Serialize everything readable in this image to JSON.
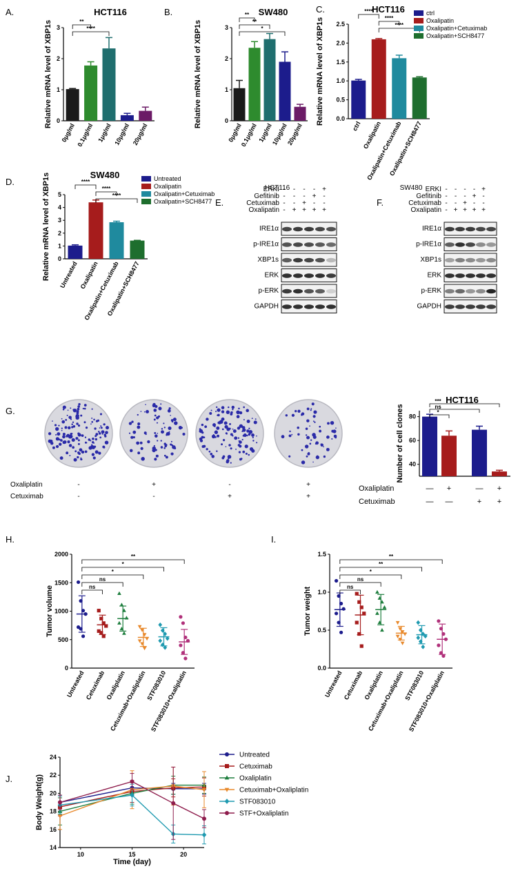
{
  "chart_data": [
    {
      "id": "A",
      "panel": "A.",
      "type": "bar",
      "title": "HCT116",
      "ylabel": "Relative mRNA level of XBP1s",
      "categories": [
        "0μg/ml",
        "0.1μg/ml",
        "1μg/ml",
        "10μg/ml",
        "20μg/ml"
      ],
      "values": [
        1.02,
        1.78,
        2.33,
        0.18,
        0.32
      ],
      "errors": [
        0.02,
        0.12,
        0.35,
        0.06,
        0.12
      ],
      "colors": [
        "#1a1a1a",
        "#2e8b2e",
        "#1f6e6e",
        "#1c1c8c",
        "#6b1a66"
      ],
      "ylim": [
        0,
        3
      ],
      "yticks": [
        "0",
        "1",
        "2",
        "3"
      ],
      "sig": [
        {
          "a": 0,
          "b": 1,
          "label": "**"
        },
        {
          "a": 0,
          "b": 2,
          "label": "****"
        }
      ]
    },
    {
      "id": "B",
      "panel": "B.",
      "type": "bar",
      "title": "SW480",
      "ylabel": "Relative mRNA level of XBP1s",
      "categories": [
        "0μg/ml",
        "0.1μg/ml",
        "1μg/ml",
        "10μg/ml",
        "20μg/ml"
      ],
      "values": [
        1.05,
        2.35,
        2.63,
        1.9,
        0.45
      ],
      "errors": [
        0.25,
        0.2,
        0.18,
        0.32,
        0.08
      ],
      "colors": [
        "#1a1a1a",
        "#2e8b2e",
        "#1f6e6e",
        "#1c1c8c",
        "#6b1a66"
      ],
      "ylim": [
        0,
        3
      ],
      "yticks": [
        "0",
        "1",
        "2",
        "3"
      ],
      "sig": [
        {
          "a": 0,
          "b": 1,
          "label": "**"
        },
        {
          "a": 0,
          "b": 2,
          "label": "**"
        },
        {
          "a": 0,
          "b": 3,
          "label": "*"
        }
      ]
    },
    {
      "id": "C",
      "panel": "C.",
      "type": "bar",
      "title": "HCT116",
      "ylabel": "Relative mRNA level of XBP1s",
      "categories": [
        "ctrl",
        "Oxalipatin",
        "Oxalipatin+Cetuximab",
        "Oxalipatin+SCH8477"
      ],
      "values": [
        1.01,
        2.1,
        1.6,
        1.09
      ],
      "errors": [
        0.03,
        0.02,
        0.08,
        0.02
      ],
      "colors": [
        "#1c1c8c",
        "#a61c1c",
        "#1f8a9e",
        "#1e6e2e"
      ],
      "ylim": [
        0,
        2.5
      ],
      "yticks": [
        "0.0",
        "0.5",
        "1.0",
        "1.5",
        "2.0",
        "2.5"
      ],
      "legend": [
        "ctrl",
        "Oxalipatin",
        "Oxalipatin+Cetuximab",
        "Oxalipatin+SCH8477"
      ],
      "sig": [
        {
          "a": 0,
          "b": 1,
          "label": "****"
        },
        {
          "a": 1,
          "b": 2,
          "label": "****"
        },
        {
          "a": 1,
          "b": 3,
          "label": "****"
        }
      ]
    },
    {
      "id": "D",
      "panel": "D.",
      "type": "bar",
      "title": "SW480",
      "ylabel": "Relative mRNA level of XBP1s",
      "categories": [
        "Untreated",
        "Oxalipatin",
        "Oxalipatin+Cetuximab",
        "Oxalipatin+SCH8477"
      ],
      "values": [
        1.03,
        4.4,
        2.85,
        1.42
      ],
      "errors": [
        0.06,
        0.18,
        0.08,
        0.02
      ],
      "colors": [
        "#1c1c8c",
        "#a61c1c",
        "#1f8a9e",
        "#1e6e2e"
      ],
      "ylim": [
        0,
        5
      ],
      "yticks": [
        "0",
        "1",
        "2",
        "3",
        "4",
        "5"
      ],
      "legend": [
        "Untreated",
        "Oxalipatin",
        "Oxalipatin+Cetuximab",
        "Oxalipatin+SCH8477"
      ],
      "sig": [
        {
          "a": 0,
          "b": 1,
          "label": "****"
        },
        {
          "a": 1,
          "b": 2,
          "label": "****"
        },
        {
          "a": 1,
          "b": 3,
          "label": "****"
        }
      ]
    },
    {
      "id": "G",
      "panel": "G.",
      "type": "bar",
      "title": "HCT116",
      "ylabel": "Number of cell clones",
      "values": [
        80,
        64,
        69,
        34
      ],
      "errors": [
        2,
        4,
        3,
        1
      ],
      "colors": [
        "#1c1c8c",
        "#a61c1c",
        "#1c1c8c",
        "#a61c1c"
      ],
      "ylim": [
        30,
        85
      ],
      "yticks": [
        "40",
        "60",
        "80"
      ],
      "rows": [
        {
          "label": "Oxaliplatin",
          "values": [
            "—",
            "+",
            "—",
            "+"
          ]
        },
        {
          "label": "Cetuximab",
          "values": [
            "—",
            "—",
            "+",
            "+"
          ]
        }
      ],
      "sig": [
        {
          "a": 0,
          "b": 1,
          "label": "*"
        },
        {
          "a": 0,
          "b": 2,
          "label": "ns"
        },
        {
          "a": 0,
          "b": 3,
          "label": "***"
        }
      ]
    },
    {
      "id": "H",
      "panel": "H.",
      "type": "scatter",
      "ylabel": "Tumor volume",
      "categories": [
        "Untreated",
        "Cetuximab",
        "Oxaliplatin",
        "Cetuximab+Oxaliplatin",
        "STF083010",
        "STF083010+Oxaliplatin"
      ],
      "colors": [
        "#1c1c8c",
        "#a61c1c",
        "#1e7e3e",
        "#e8882a",
        "#1f9ab0",
        "#b0307a"
      ],
      "markers": [
        "circle",
        "square",
        "triangle",
        "triangle-down",
        "diamond",
        "circle"
      ],
      "means": [
        950,
        760,
        870,
        540,
        550,
        460
      ],
      "sds": [
        320,
        170,
        220,
        160,
        160,
        220
      ],
      "points": [
        [
          1510,
          1180,
          1010,
          950,
          720,
          690,
          560
        ],
        [
          1010,
          870,
          790,
          740,
          650,
          620,
          560
        ],
        [
          1310,
          1110,
          1010,
          880,
          790,
          690,
          610
        ],
        [
          730,
          670,
          590,
          520,
          480,
          430,
          350
        ],
        [
          760,
          660,
          600,
          520,
          480,
          410,
          360
        ],
        [
          900,
          790,
          540,
          480,
          400,
          270,
          170
        ]
      ],
      "ylim": [
        0,
        2000
      ],
      "yticks": [
        "0",
        "500",
        "1000",
        "1500",
        "2000"
      ],
      "sig": [
        {
          "a": 0,
          "b": 1,
          "label": "ns"
        },
        {
          "a": 0,
          "b": 2,
          "label": "ns"
        },
        {
          "a": 0,
          "b": 3,
          "label": "*"
        },
        {
          "a": 0,
          "b": 4,
          "label": "*"
        },
        {
          "a": 0,
          "b": 5,
          "label": "**"
        }
      ]
    },
    {
      "id": "I",
      "panel": "I.",
      "type": "scatter",
      "ylabel": "Tumor weight",
      "categories": [
        "Untreated",
        "Cetuximab",
        "Oxaliplatin",
        "Cetuximab+Oxaliplatin",
        "STF083010",
        "STF083010+Oxaliplatin"
      ],
      "colors": [
        "#1c1c8c",
        "#a61c1c",
        "#1e7e3e",
        "#e8882a",
        "#1f9ab0",
        "#b0307a"
      ],
      "markers": [
        "circle",
        "square",
        "triangle",
        "triangle-down",
        "diamond",
        "circle"
      ],
      "means": [
        0.77,
        0.7,
        0.77,
        0.46,
        0.44,
        0.38
      ],
      "sds": [
        0.22,
        0.26,
        0.2,
        0.09,
        0.12,
        0.2
      ],
      "points": [
        [
          1.15,
          0.95,
          0.85,
          0.78,
          0.72,
          0.6,
          0.47
        ],
        [
          0.98,
          0.87,
          0.8,
          0.72,
          0.6,
          0.45,
          0.29
        ],
        [
          1.0,
          0.92,
          0.87,
          0.8,
          0.72,
          0.6,
          0.5
        ],
        [
          0.6,
          0.52,
          0.48,
          0.45,
          0.42,
          0.38,
          0.33
        ],
        [
          0.6,
          0.5,
          0.45,
          0.42,
          0.4,
          0.35,
          0.28
        ],
        [
          0.62,
          0.52,
          0.45,
          0.38,
          0.3,
          0.2,
          0.16
        ]
      ],
      "ylim": [
        0,
        1.5
      ],
      "yticks": [
        "0.0",
        "0.5",
        "1.0",
        "1.5"
      ],
      "sig": [
        {
          "a": 0,
          "b": 1,
          "label": "ns"
        },
        {
          "a": 0,
          "b": 2,
          "label": "ns"
        },
        {
          "a": 0,
          "b": 3,
          "label": "*"
        },
        {
          "a": 0,
          "b": 4,
          "label": "**"
        },
        {
          "a": 0,
          "b": 5,
          "label": "**"
        }
      ]
    },
    {
      "id": "J",
      "panel": "J.",
      "type": "line",
      "xlabel": "Time (day)",
      "ylabel": "Body Weight(g)",
      "x": [
        8,
        15,
        19,
        22
      ],
      "xlim": [
        8,
        22
      ],
      "xticks": [
        "10",
        "15",
        "20"
      ],
      "xtickvals": [
        10,
        15,
        20
      ],
      "ylim": [
        14,
        24
      ],
      "yticks": [
        "14",
        "16",
        "18",
        "20",
        "22",
        "24"
      ],
      "series": [
        {
          "name": "Untreated",
          "color": "#1c1c8c",
          "marker": "circle",
          "values": [
            19.0,
            20.6,
            20.5,
            20.5
          ],
          "errors": [
            0.8,
            0.8,
            0.6,
            0.6
          ]
        },
        {
          "name": "Cetuximab",
          "color": "#a61c1c",
          "marker": "square",
          "values": [
            18.5,
            20.2,
            20.6,
            20.7
          ],
          "errors": [
            1.0,
            1.2,
            1.0,
            1.0
          ]
        },
        {
          "name": "Oxaliplatin",
          "color": "#1e7e3e",
          "marker": "triangle",
          "values": [
            18.0,
            20.0,
            20.9,
            20.9
          ],
          "errors": [
            1.5,
            1.2,
            1.0,
            0.9
          ]
        },
        {
          "name": "Cetuximab+Oxaliplatin",
          "color": "#e8882a",
          "marker": "triangle-down",
          "values": [
            17.5,
            20.4,
            20.8,
            20.4
          ],
          "errors": [
            1.5,
            2.1,
            2.1,
            2.0
          ]
        },
        {
          "name": "STF083010",
          "color": "#1f9ab0",
          "marker": "diamond",
          "values": [
            18.7,
            19.8,
            15.5,
            15.4
          ],
          "errors": [
            1.0,
            1.2,
            1.0,
            1.0
          ]
        },
        {
          "name": "STF+Oxaliplatin",
          "color": "#8e1c4c",
          "marker": "circle",
          "values": [
            19.0,
            21.3,
            18.9,
            17.2
          ],
          "errors": [
            0.8,
            0.9,
            4.0,
            1.0
          ]
        }
      ]
    }
  ],
  "blots": [
    {
      "panel": "E.",
      "cell": "HCT116",
      "treatments": [
        {
          "name": "ERKI",
          "signs": [
            "-",
            "-",
            "-",
            "-",
            "+"
          ]
        },
        {
          "name": "Gefitinib",
          "signs": [
            "-",
            "-",
            "-",
            "+",
            "-"
          ]
        },
        {
          "name": "Cetuximab",
          "signs": [
            "-",
            "-",
            "+",
            "-",
            "-"
          ]
        },
        {
          "name": "Oxalipatin",
          "signs": [
            "-",
            "+",
            "+",
            "+",
            "+"
          ]
        }
      ],
      "bands": [
        "IRE1α",
        "p-IRE1α",
        "XBP1s",
        "ERK",
        "p-ERK",
        "GAPDH"
      ],
      "intensity": [
        [
          0.8,
          0.85,
          0.85,
          0.8,
          0.75
        ],
        [
          0.75,
          0.8,
          0.78,
          0.72,
          0.65
        ],
        [
          0.7,
          0.85,
          0.8,
          0.75,
          0.3
        ],
        [
          0.9,
          0.9,
          0.9,
          0.9,
          0.85
        ],
        [
          0.85,
          0.9,
          0.75,
          0.7,
          0.2
        ],
        [
          0.9,
          0.9,
          0.9,
          0.9,
          0.9
        ]
      ]
    },
    {
      "panel": "F.",
      "cell": "SW480",
      "treatments": [
        {
          "name": "ERKI",
          "signs": [
            "-",
            "-",
            "-",
            "-",
            "+"
          ]
        },
        {
          "name": "Gefitinib",
          "signs": [
            "-",
            "-",
            "-",
            "+",
            "-"
          ]
        },
        {
          "name": "Cetuximab",
          "signs": [
            "-",
            "-",
            "+",
            "-",
            "-"
          ]
        },
        {
          "name": "Oxalipatin",
          "signs": [
            "-",
            "+",
            "+",
            "+",
            "+"
          ]
        }
      ],
      "bands": [
        "IRE1α",
        "p-IRE1α",
        "XBP1s",
        "ERK",
        "p-ERK",
        "GAPDH"
      ],
      "intensity": [
        [
          0.85,
          0.85,
          0.85,
          0.8,
          0.8
        ],
        [
          0.7,
          0.9,
          0.8,
          0.5,
          0.45
        ],
        [
          0.4,
          0.55,
          0.5,
          0.45,
          0.5
        ],
        [
          0.9,
          0.9,
          0.9,
          0.9,
          0.9
        ],
        [
          0.55,
          0.65,
          0.45,
          0.5,
          0.95
        ],
        [
          0.85,
          0.85,
          0.85,
          0.85,
          0.85
        ]
      ]
    }
  ],
  "clones": {
    "panel": "G.",
    "rows": [
      {
        "label": "Oxaliplatin",
        "signs": [
          "-",
          "+",
          "-",
          "+"
        ]
      },
      {
        "label": "Cetuximab",
        "signs": [
          "-",
          "-",
          "+",
          "+"
        ]
      }
    ],
    "density": [
      140,
      80,
      120,
      60
    ]
  }
}
